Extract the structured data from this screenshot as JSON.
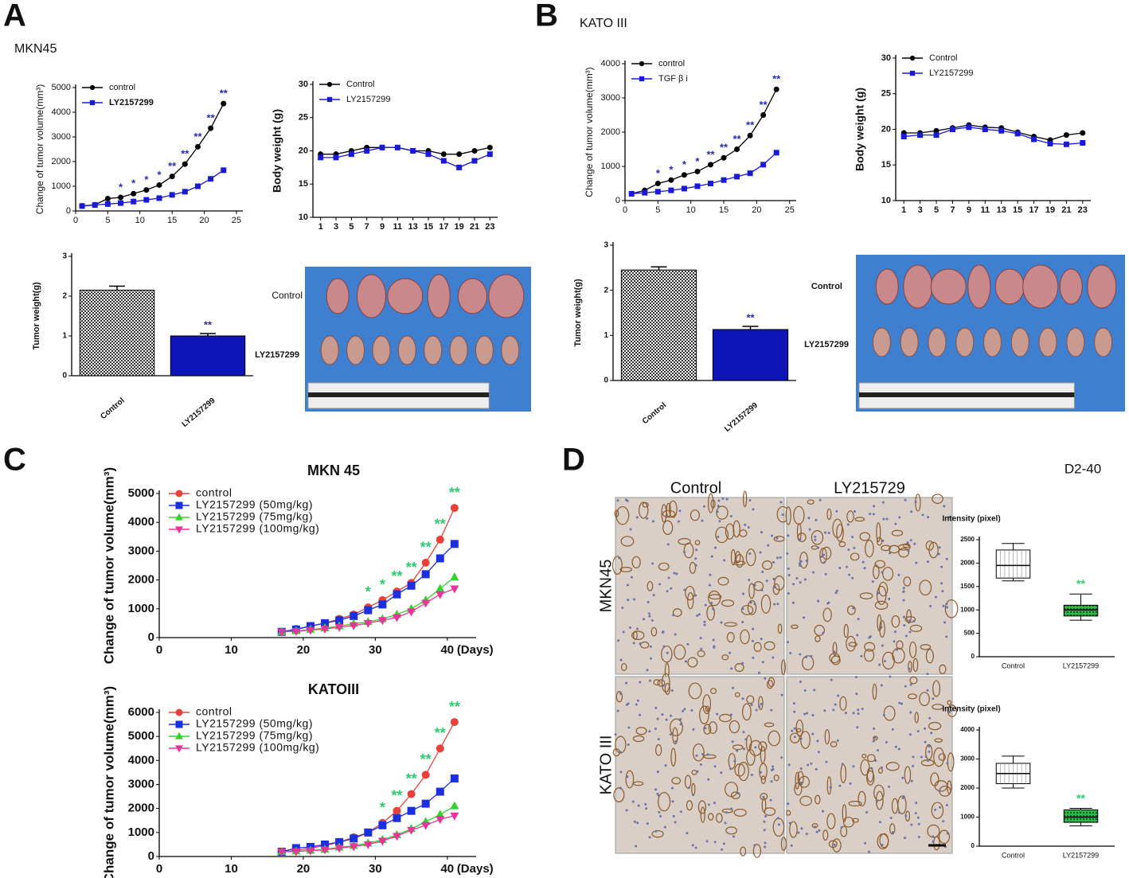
{
  "panels": [
    {
      "letter": "A",
      "subtitle": "MKN45"
    },
    {
      "letter": "B",
      "subtitle": "KATO III"
    },
    {
      "letter": "C"
    },
    {
      "letter": "D",
      "stain": "D2-40",
      "columns": [
        "Control",
        "LY215729"
      ],
      "rows": [
        "MKN45",
        "KATO III"
      ]
    }
  ],
  "photos": [
    {
      "labels": [
        "Control",
        "LY2157299"
      ]
    },
    {
      "labels": [
        "Control",
        "LY2157299"
      ]
    }
  ],
  "chart_data": [
    {
      "type": "line",
      "ylabel": "Change of tumor volume(mm³)",
      "legend": "upper left",
      "x": [
        1,
        3,
        5,
        7,
        9,
        11,
        13,
        15,
        17,
        19,
        21,
        23
      ],
      "xlim": [
        0,
        26
      ],
      "xticks": [
        0,
        5,
        10,
        15,
        20,
        25
      ],
      "ylim": [
        0,
        5000
      ],
      "yticks": [
        0,
        1000,
        2000,
        3000,
        4000,
        5000
      ],
      "significance_color": "#2a2ab8",
      "series": [
        {
          "name": "control",
          "color": "#000000",
          "marker": "circle",
          "values": [
            200,
            250,
            500,
            550,
            700,
            850,
            1050,
            1400,
            1900,
            2600,
            3350,
            4350
          ],
          "significance": [
            null,
            null,
            null,
            "*",
            "*",
            "*",
            "*",
            "**",
            "**",
            "**",
            "**",
            "**"
          ]
        },
        {
          "name": "LY2157299",
          "color": "#1a1ad6",
          "marker": "square",
          "values": [
            200,
            240,
            280,
            320,
            380,
            450,
            520,
            650,
            780,
            1000,
            1300,
            1650
          ]
        }
      ]
    },
    {
      "type": "line",
      "ylabel": "Body weight (g)",
      "legend": "upper left",
      "x": [
        1,
        3,
        5,
        7,
        9,
        11,
        13,
        15,
        17,
        19,
        21,
        23
      ],
      "xlim": [
        0,
        24
      ],
      "xticks": [
        1,
        3,
        5,
        7,
        9,
        11,
        13,
        15,
        17,
        19,
        21,
        23
      ],
      "ylim": [
        10,
        30
      ],
      "yticks": [
        10,
        15,
        20,
        25,
        30
      ],
      "series": [
        {
          "name": "Control",
          "color": "#000000",
          "marker": "circle",
          "values": [
            19.5,
            19.5,
            20,
            20.5,
            20.5,
            20.5,
            20,
            20,
            19.5,
            19.5,
            20,
            20.5
          ]
        },
        {
          "name": "LY2157299",
          "color": "#1a1ad6",
          "marker": "square",
          "values": [
            19,
            19,
            19.5,
            20,
            20.5,
            20.5,
            20,
            19.5,
            18.5,
            17.5,
            18.5,
            19.5
          ]
        }
      ]
    },
    {
      "type": "bar",
      "ylabel": "Tumor weight(g)",
      "categories": [
        "Control",
        "LY2157299"
      ],
      "values": [
        2.15,
        1.0
      ],
      "errors": [
        0.1,
        0.06
      ],
      "fills": [
        "checker",
        "#0d14b8"
      ],
      "significance": [
        null,
        "**"
      ],
      "significance_color": "#2a2ab8",
      "ylim": [
        0,
        3
      ],
      "yticks": [
        0,
        1,
        2,
        3
      ]
    },
    {
      "type": "line",
      "ylabel": "Change of tumor volume(mm³)",
      "legend": "upper left",
      "x": [
        1,
        3,
        5,
        7,
        9,
        11,
        13,
        15,
        17,
        19,
        21,
        23
      ],
      "xlim": [
        0,
        26
      ],
      "xticks": [
        0,
        5,
        10,
        15,
        20,
        25
      ],
      "ylim": [
        0,
        4000
      ],
      "yticks": [
        0,
        1000,
        2000,
        3000,
        4000
      ],
      "significance_color": "#2a2ab8",
      "series": [
        {
          "name": "control",
          "color": "#000000",
          "marker": "circle",
          "values": [
            200,
            300,
            500,
            600,
            750,
            850,
            1050,
            1250,
            1500,
            1900,
            2500,
            3250
          ],
          "significance": [
            null,
            null,
            "*",
            "*",
            "*",
            "*",
            "**",
            "**",
            "**",
            "**",
            "**",
            "**"
          ]
        },
        {
          "name": "TGF β i",
          "color": "#1a1ad6",
          "marker": "square",
          "values": [
            200,
            230,
            260,
            300,
            350,
            420,
            500,
            600,
            700,
            800,
            1050,
            1400
          ]
        }
      ]
    },
    {
      "type": "line",
      "ylabel": "Body weight (g)",
      "legend": "upper left",
      "x": [
        1,
        3,
        5,
        7,
        9,
        11,
        13,
        15,
        17,
        19,
        21,
        23
      ],
      "xlim": [
        0,
        24
      ],
      "xticks": [
        1,
        3,
        5,
        7,
        9,
        11,
        13,
        15,
        17,
        19,
        21,
        23
      ],
      "ylim": [
        10,
        30
      ],
      "yticks": [
        10,
        15,
        20,
        25,
        30
      ],
      "series": [
        {
          "name": "Control",
          "color": "#000000",
          "marker": "circle",
          "values": [
            19.5,
            19.5,
            19.8,
            20.2,
            20.6,
            20.3,
            20.2,
            19.6,
            19.0,
            18.5,
            19.2,
            19.5
          ]
        },
        {
          "name": "LY2157299",
          "color": "#1a1ad6",
          "marker": "square",
          "values": [
            19,
            19.2,
            19.2,
            20,
            20.3,
            20,
            19.8,
            19.4,
            18.6,
            18,
            17.9,
            18.1
          ]
        }
      ]
    },
    {
      "type": "bar",
      "ylabel": "Tumor weight(g)",
      "categories": [
        "Control",
        "LY2157299"
      ],
      "values": [
        2.45,
        1.13
      ],
      "errors": [
        0.07,
        0.07
      ],
      "fills": [
        "checker",
        "#0d14b8"
      ],
      "significance": [
        null,
        "**"
      ],
      "significance_color": "#2a2ab8",
      "ylim": [
        0,
        3
      ],
      "yticks": [
        0,
        1,
        2,
        3
      ]
    },
    {
      "type": "line",
      "title": "MKN 45",
      "ylabel": "Change of tumor volume(mm³)",
      "xlabel": "(Days)",
      "legend": "upper left",
      "x": [
        17,
        19,
        21,
        23,
        25,
        27,
        29,
        31,
        33,
        35,
        37,
        39,
        41
      ],
      "xlim": [
        0,
        44
      ],
      "xticks": [
        0,
        10,
        20,
        30,
        40
      ],
      "ylim": [
        0,
        5000
      ],
      "yticks": [
        0,
        1000,
        2000,
        3000,
        4000,
        5000
      ],
      "significance_color": "#2ecc71",
      "series": [
        {
          "name": "control",
          "color": "#e8413c",
          "marker": "circle",
          "values": [
            200,
            300,
            400,
            500,
            650,
            800,
            1050,
            1300,
            1600,
            1900,
            2600,
            3400,
            4500
          ],
          "significance": [
            null,
            null,
            null,
            null,
            null,
            null,
            "*",
            "*",
            "**",
            "**",
            "**",
            "**",
            "**"
          ]
        },
        {
          "name": "LY2157299 (50mg/kg)",
          "color": "#1a2fe0",
          "marker": "square",
          "values": [
            200,
            280,
            400,
            500,
            600,
            750,
            950,
            1150,
            1500,
            1800,
            2200,
            2750,
            3250
          ]
        },
        {
          "name": "LY2157299 (75mg/kg)",
          "color": "#33d42a",
          "marker": "triangle",
          "values": [
            200,
            230,
            280,
            330,
            400,
            480,
            550,
            650,
            800,
            1000,
            1300,
            1700,
            2100
          ]
        },
        {
          "name": "LY2157299 (100mg/kg)",
          "color": "#e8359a",
          "marker": "triangle-down",
          "values": [
            200,
            220,
            260,
            300,
            360,
            420,
            500,
            600,
            700,
            900,
            1200,
            1500,
            1700
          ]
        }
      ]
    },
    {
      "type": "line",
      "title": "KATOIII",
      "ylabel": "Change of tumor volume(mm³)",
      "xlabel": "(Days)",
      "legend": "upper left",
      "x": [
        17,
        19,
        21,
        23,
        25,
        27,
        29,
        31,
        33,
        35,
        37,
        39,
        41
      ],
      "xlim": [
        0,
        44
      ],
      "xticks": [
        0,
        10,
        20,
        30,
        40
      ],
      "ylim": [
        0,
        6000
      ],
      "yticks": [
        0,
        1000,
        2000,
        3000,
        4000,
        5000,
        6000
      ],
      "significance_color": "#2ecc71",
      "series": [
        {
          "name": "control",
          "color": "#e8413c",
          "marker": "circle",
          "values": [
            200,
            250,
            350,
            450,
            600,
            800,
            1000,
            1400,
            1900,
            2600,
            3400,
            4500,
            5600
          ],
          "significance": [
            null,
            null,
            null,
            null,
            null,
            null,
            null,
            "*",
            "**",
            "**",
            "**",
            "**",
            "**"
          ]
        },
        {
          "name": "LY2157299 (50mg/kg)",
          "color": "#1a2fe0",
          "marker": "square",
          "values": [
            200,
            350,
            400,
            500,
            600,
            750,
            1000,
            1300,
            1600,
            1900,
            2200,
            2700,
            3250
          ]
        },
        {
          "name": "LY2157299 (75mg/kg)",
          "color": "#33d42a",
          "marker": "triangle",
          "values": [
            200,
            220,
            250,
            300,
            380,
            450,
            550,
            700,
            900,
            1150,
            1450,
            1750,
            2100
          ]
        },
        {
          "name": "LY2157299 (100mg/kg)",
          "color": "#e8359a",
          "marker": "triangle-down",
          "values": [
            200,
            210,
            240,
            280,
            350,
            420,
            500,
            650,
            850,
            1100,
            1300,
            1550,
            1700
          ]
        }
      ]
    },
    {
      "type": "box",
      "ylabel": "Intensity (pixel)",
      "categories": [
        "Control",
        "LY2157299"
      ],
      "boxes": [
        {
          "min": 1620,
          "q1": 1680,
          "median": 1950,
          "q3": 2280,
          "max": 2420
        },
        {
          "min": 780,
          "q1": 870,
          "median": 1000,
          "q3": 1100,
          "max": 1340
        }
      ],
      "fills": [
        "#ffffff",
        "#2fb84a"
      ],
      "significance": [
        null,
        "**"
      ],
      "significance_color": "#2ecc71",
      "ylim": [
        0,
        2500
      ],
      "yticks": [
        0,
        500,
        1000,
        1500,
        2000,
        2500
      ]
    },
    {
      "type": "box",
      "ylabel": "Intensity (pixel)",
      "categories": [
        "Control",
        "LY2157299"
      ],
      "boxes": [
        {
          "min": 2000,
          "q1": 2150,
          "median": 2500,
          "q3": 2850,
          "max": 3100
        },
        {
          "min": 700,
          "q1": 820,
          "median": 1000,
          "q3": 1250,
          "max": 1300
        }
      ],
      "fills": [
        "#ffffff",
        "#2fb84a"
      ],
      "significance": [
        null,
        "**"
      ],
      "significance_color": "#2ecc71",
      "ylim": [
        0,
        4000
      ],
      "yticks": [
        0,
        1000,
        2000,
        3000,
        4000
      ]
    }
  ]
}
